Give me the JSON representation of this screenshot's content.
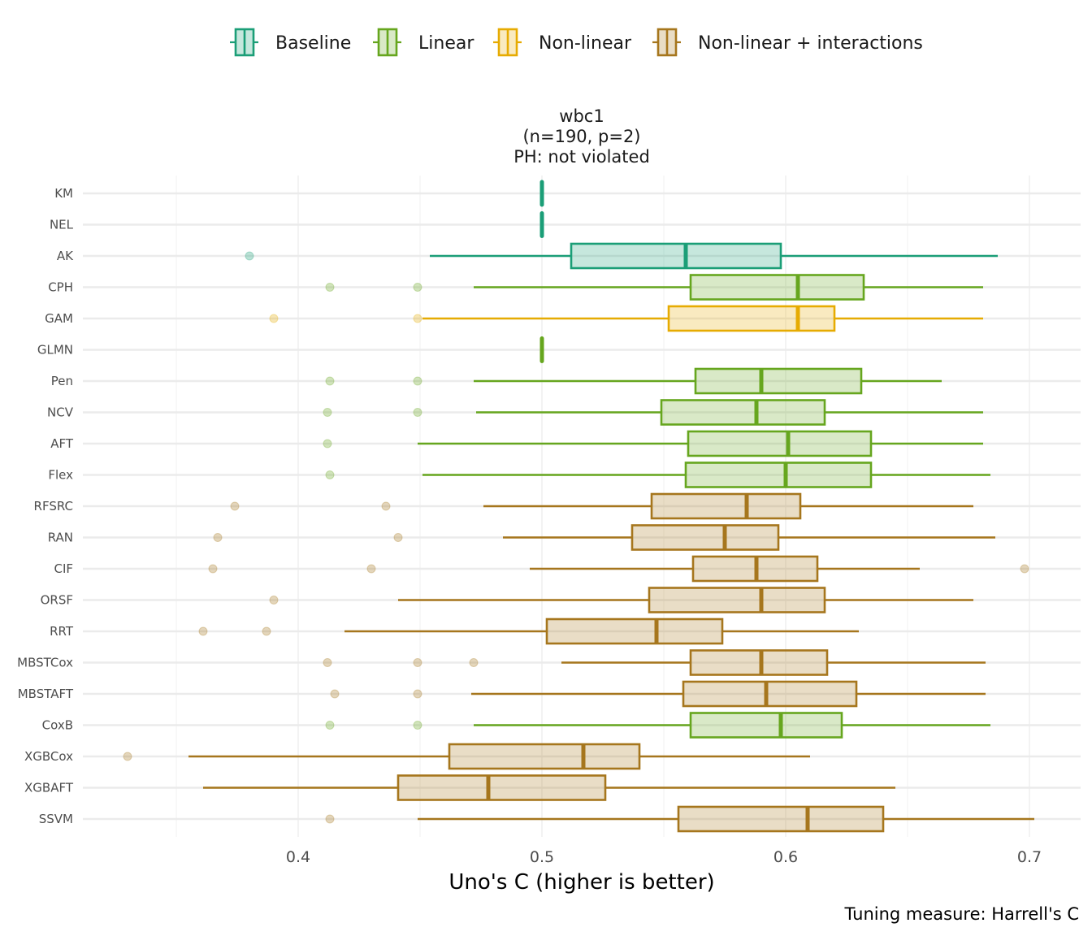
{
  "chart_data": {
    "type": "boxplot",
    "orientation": "horizontal",
    "title_lines": [
      "wbc1",
      "(n=190, p=2)",
      "PH: not violated"
    ],
    "xlabel": "Uno's C (higher is better)",
    "ylabel": "",
    "caption": "Tuning measure: Harrell's C",
    "xlim": [
      0.318,
      0.71
    ],
    "xticks": [
      0.4,
      0.5,
      0.6,
      0.7
    ],
    "xtick_labels": [
      "0.4",
      "0.5",
      "0.6",
      "0.7"
    ],
    "minor_gridlines": [
      0.35,
      0.45,
      0.55,
      0.65
    ],
    "grid": true,
    "legend": {
      "position": "top",
      "entries": [
        {
          "name": "Baseline",
          "color": "#1b9e77"
        },
        {
          "name": "Linear",
          "color": "#66a61e"
        },
        {
          "name": "Non-linear",
          "color": "#e6ab02"
        },
        {
          "name": "Non-linear + interactions",
          "color": "#a6761d"
        }
      ]
    },
    "series": [
      {
        "model": "KM",
        "group": "Baseline",
        "whisker_low": 0.5,
        "q1": 0.5,
        "median": 0.5,
        "q3": 0.5,
        "whisker_high": 0.5,
        "outliers": []
      },
      {
        "model": "NEL",
        "group": "Baseline",
        "whisker_low": 0.5,
        "q1": 0.5,
        "median": 0.5,
        "q3": 0.5,
        "whisker_high": 0.5,
        "outliers": []
      },
      {
        "model": "AK",
        "group": "Baseline",
        "whisker_low": 0.454,
        "q1": 0.512,
        "median": 0.559,
        "q3": 0.598,
        "whisker_high": 0.687,
        "outliers": [
          0.38
        ]
      },
      {
        "model": "CPH",
        "group": "Linear",
        "whisker_low": 0.472,
        "q1": 0.561,
        "median": 0.605,
        "q3": 0.632,
        "whisker_high": 0.681,
        "outliers": [
          0.413,
          0.449
        ]
      },
      {
        "model": "GAM",
        "group": "Non-linear",
        "whisker_low": 0.451,
        "q1": 0.552,
        "median": 0.605,
        "q3": 0.62,
        "whisker_high": 0.681,
        "outliers": [
          0.39,
          0.449
        ]
      },
      {
        "model": "GLMN",
        "group": "Linear",
        "whisker_low": 0.5,
        "q1": 0.5,
        "median": 0.5,
        "q3": 0.5,
        "whisker_high": 0.5,
        "outliers": []
      },
      {
        "model": "Pen",
        "group": "Linear",
        "whisker_low": 0.472,
        "q1": 0.563,
        "median": 0.59,
        "q3": 0.631,
        "whisker_high": 0.664,
        "outliers": [
          0.413,
          0.449
        ]
      },
      {
        "model": "NCV",
        "group": "Linear",
        "whisker_low": 0.473,
        "q1": 0.549,
        "median": 0.588,
        "q3": 0.616,
        "whisker_high": 0.681,
        "outliers": [
          0.412,
          0.449
        ]
      },
      {
        "model": "AFT",
        "group": "Linear",
        "whisker_low": 0.449,
        "q1": 0.56,
        "median": 0.601,
        "q3": 0.635,
        "whisker_high": 0.681,
        "outliers": [
          0.412
        ]
      },
      {
        "model": "Flex",
        "group": "Linear",
        "whisker_low": 0.451,
        "q1": 0.559,
        "median": 0.6,
        "q3": 0.635,
        "whisker_high": 0.684,
        "outliers": [
          0.413
        ]
      },
      {
        "model": "RFSRC",
        "group": "Non-linear + interactions",
        "whisker_low": 0.476,
        "q1": 0.545,
        "median": 0.584,
        "q3": 0.606,
        "whisker_high": 0.677,
        "outliers": [
          0.374,
          0.436
        ]
      },
      {
        "model": "RAN",
        "group": "Non-linear + interactions",
        "whisker_low": 0.484,
        "q1": 0.537,
        "median": 0.575,
        "q3": 0.597,
        "whisker_high": 0.686,
        "outliers": [
          0.367,
          0.441
        ]
      },
      {
        "model": "CIF",
        "group": "Non-linear + interactions",
        "whisker_low": 0.495,
        "q1": 0.562,
        "median": 0.588,
        "q3": 0.613,
        "whisker_high": 0.655,
        "outliers": [
          0.365,
          0.43,
          0.698
        ]
      },
      {
        "model": "ORSF",
        "group": "Non-linear + interactions",
        "whisker_low": 0.441,
        "q1": 0.544,
        "median": 0.59,
        "q3": 0.616,
        "whisker_high": 0.677,
        "outliers": [
          0.39
        ]
      },
      {
        "model": "RRT",
        "group": "Non-linear + interactions",
        "whisker_low": 0.419,
        "q1": 0.502,
        "median": 0.547,
        "q3": 0.574,
        "whisker_high": 0.63,
        "outliers": [
          0.361,
          0.387
        ]
      },
      {
        "model": "MBSTCox",
        "group": "Non-linear + interactions",
        "whisker_low": 0.508,
        "q1": 0.561,
        "median": 0.59,
        "q3": 0.617,
        "whisker_high": 0.682,
        "outliers": [
          0.412,
          0.449,
          0.472
        ]
      },
      {
        "model": "MBSTAFT",
        "group": "Non-linear + interactions",
        "whisker_low": 0.471,
        "q1": 0.558,
        "median": 0.592,
        "q3": 0.629,
        "whisker_high": 0.682,
        "outliers": [
          0.415,
          0.449
        ]
      },
      {
        "model": "CoxB",
        "group": "Linear",
        "whisker_low": 0.472,
        "q1": 0.561,
        "median": 0.598,
        "q3": 0.623,
        "whisker_high": 0.684,
        "outliers": [
          0.413,
          0.449
        ]
      },
      {
        "model": "XGBCox",
        "group": "Non-linear + interactions",
        "whisker_low": 0.355,
        "q1": 0.462,
        "median": 0.517,
        "q3": 0.54,
        "whisker_high": 0.61,
        "outliers": [
          0.33
        ]
      },
      {
        "model": "XGBAFT",
        "group": "Non-linear + interactions",
        "whisker_low": 0.361,
        "q1": 0.441,
        "median": 0.478,
        "q3": 0.526,
        "whisker_high": 0.645,
        "outliers": []
      },
      {
        "model": "SSVM",
        "group": "Non-linear + interactions",
        "whisker_low": 0.449,
        "q1": 0.556,
        "median": 0.609,
        "q3": 0.64,
        "whisker_high": 0.702,
        "outliers": [
          0.413
        ]
      }
    ]
  }
}
